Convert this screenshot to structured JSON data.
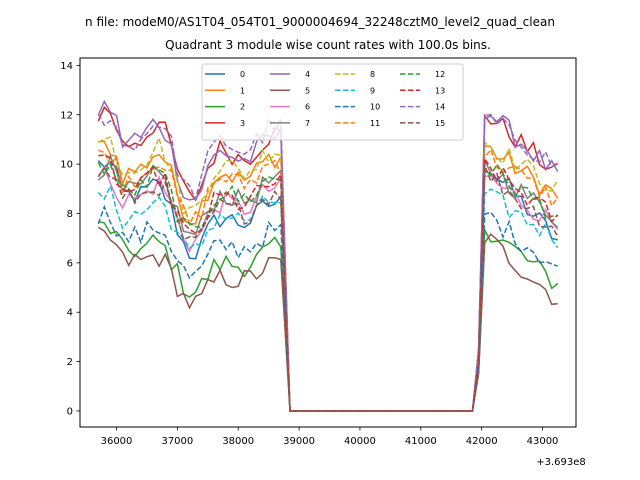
{
  "chart_data": {
    "type": "line",
    "suptitle": "n file: modeM0/AS1T04_054T01_9000004694_32248cztM0_level2_quad_clean",
    "title": "Quadrant 3 module wise count rates with 100.0s bins.",
    "xlabel": "",
    "ylabel": "",
    "x_offset_label": "+3.693e8",
    "xlim": [
      35400,
      43550
    ],
    "ylim": [
      -0.65,
      14.3
    ],
    "xticks": [
      36000,
      37000,
      38000,
      39000,
      40000,
      41000,
      42000,
      43000
    ],
    "xtick_labels": [
      "36000",
      "37000",
      "38000",
      "39000",
      "40000",
      "41000",
      "42000",
      "43000"
    ],
    "yticks": [
      0,
      2,
      4,
      6,
      8,
      10,
      12,
      14
    ],
    "ytick_labels": [
      "0",
      "2",
      "4",
      "6",
      "8",
      "10",
      "12",
      "14"
    ],
    "grid": false,
    "legend_position": "upper center",
    "legend_columns": 4,
    "gap": {
      "from": 38850,
      "to": 41850,
      "value": 0
    },
    "segments": [
      {
        "x_start": 35700,
        "x_end": 38750,
        "step": 100
      },
      {
        "x_start": 41950,
        "x_end": 43250,
        "step": 100
      }
    ],
    "series": [
      {
        "name": "0",
        "color": "#1f77b4",
        "dash": "solid",
        "base": [
          10.0,
          7.4
        ]
      },
      {
        "name": "1",
        "color": "#ff7f0e",
        "dash": "solid",
        "base": [
          10.6,
          9.2
        ]
      },
      {
        "name": "2",
        "color": "#2ca02c",
        "dash": "solid",
        "base": [
          7.4,
          5.6
        ]
      },
      {
        "name": "3",
        "color": "#d62728",
        "dash": "solid",
        "base": [
          12.0,
          10.1
        ]
      },
      {
        "name": "4",
        "color": "#9467bd",
        "dash": "solid",
        "base": [
          12.2,
          10.0
        ]
      },
      {
        "name": "5",
        "color": "#8c564b",
        "dash": "solid",
        "base": [
          7.0,
          5.0
        ]
      },
      {
        "name": "6",
        "color": "#e377c2",
        "dash": "solid",
        "base": [
          9.4,
          8.0
        ]
      },
      {
        "name": "7",
        "color": "#7f7f7f",
        "dash": "solid",
        "base": [
          9.8,
          8.3
        ]
      },
      {
        "name": "8",
        "color": "#bcbd22",
        "dash": "dashed",
        "base": [
          10.8,
          9.5
        ]
      },
      {
        "name": "9",
        "color": "#17becf",
        "dash": "dashed",
        "base": [
          8.6,
          7.5
        ]
      },
      {
        "name": "10",
        "color": "#1f77b4",
        "dash": "dashed",
        "base": [
          7.9,
          6.3
        ]
      },
      {
        "name": "11",
        "color": "#ff7f0e",
        "dash": "dashed",
        "base": [
          10.3,
          9.0
        ]
      },
      {
        "name": "12",
        "color": "#2ca02c",
        "dash": "dashed",
        "base": [
          9.8,
          8.4
        ]
      },
      {
        "name": "13",
        "color": "#d62728",
        "dash": "dashed",
        "base": [
          9.9,
          8.2
        ]
      },
      {
        "name": "14",
        "color": "#9467bd",
        "dash": "dashed",
        "base": [
          11.8,
          10.4
        ]
      },
      {
        "name": "15",
        "color": "#8c564b",
        "dash": "dashed",
        "base": [
          9.6,
          7.8
        ]
      }
    ]
  }
}
